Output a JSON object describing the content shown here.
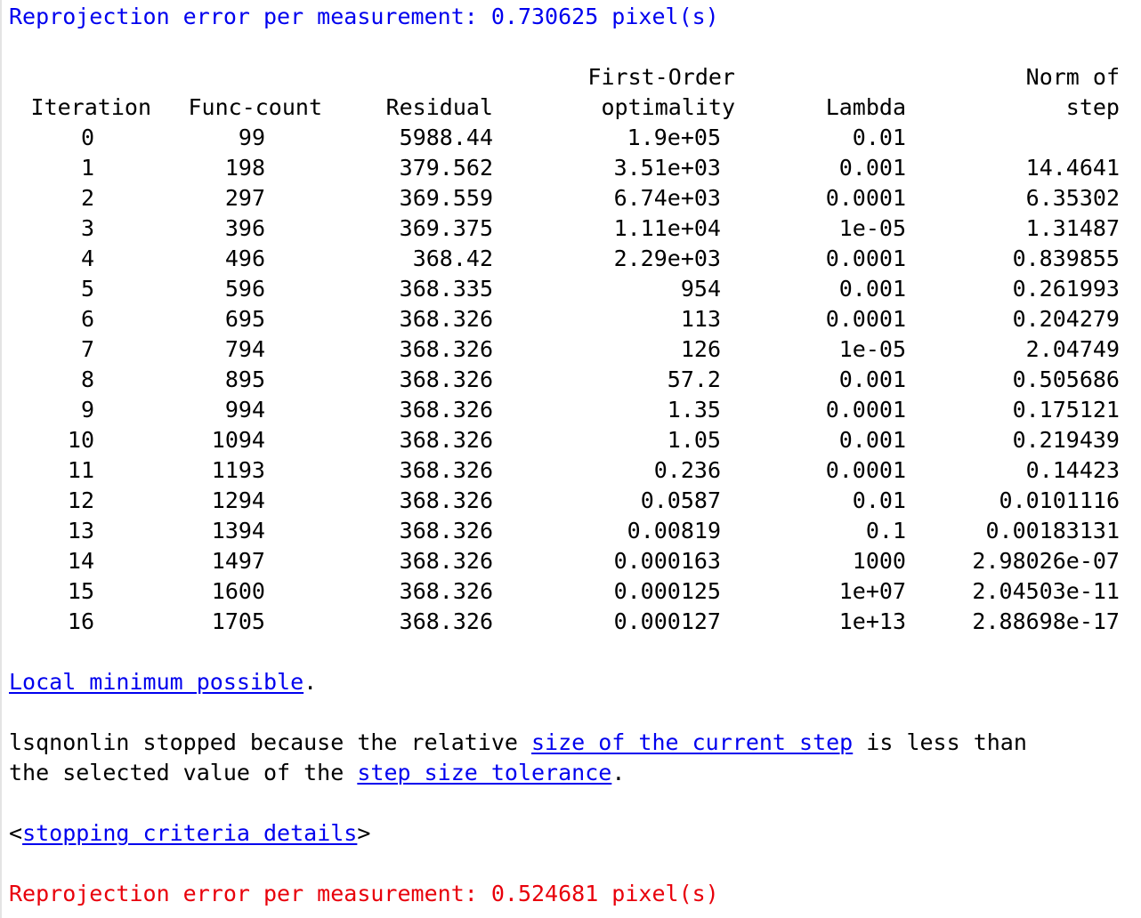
{
  "header_line": {
    "text": "Reprojection error per measurement: 0.730625 pixel(s)",
    "color": "#0000ee"
  },
  "table": {
    "header_top": {
      "col3": "First-Order",
      "col5": "Norm of"
    },
    "header_bottom": {
      "col0": "Iteration",
      "col1": "Func-count",
      "col2": "Residual",
      "col3": "optimality",
      "col4": "Lambda",
      "col5": "step"
    },
    "rows": [
      [
        "0",
        "99",
        "5988.44",
        "1.9e+05",
        "0.01",
        ""
      ],
      [
        "1",
        "198",
        "379.562",
        "3.51e+03",
        "0.001",
        "14.4641"
      ],
      [
        "2",
        "297",
        "369.559",
        "6.74e+03",
        "0.0001",
        "6.35302"
      ],
      [
        "3",
        "396",
        "369.375",
        "1.11e+04",
        "1e-05",
        "1.31487"
      ],
      [
        "4",
        "496",
        "368.42",
        "2.29e+03",
        "0.0001",
        "0.839855"
      ],
      [
        "5",
        "596",
        "368.335",
        "954",
        "0.001",
        "0.261993"
      ],
      [
        "6",
        "695",
        "368.326",
        "113",
        "0.0001",
        "0.204279"
      ],
      [
        "7",
        "794",
        "368.326",
        "126",
        "1e-05",
        "2.04749"
      ],
      [
        "8",
        "895",
        "368.326",
        "57.2",
        "0.001",
        "0.505686"
      ],
      [
        "9",
        "994",
        "368.326",
        "1.35",
        "0.0001",
        "0.175121"
      ],
      [
        "10",
        "1094",
        "368.326",
        "1.05",
        "0.001",
        "0.219439"
      ],
      [
        "11",
        "1193",
        "368.326",
        "0.236",
        "0.0001",
        "0.14423"
      ],
      [
        "12",
        "1294",
        "368.326",
        "0.0587",
        "0.01",
        "0.0101116"
      ],
      [
        "13",
        "1394",
        "368.326",
        "0.00819",
        "0.1",
        "0.00183131"
      ],
      [
        "14",
        "1497",
        "368.326",
        "0.000163",
        "1000",
        "2.98026e-07"
      ],
      [
        "15",
        "1600",
        "368.326",
        "0.000125",
        "1e+07",
        "2.04503e-11"
      ],
      [
        "16",
        "1705",
        "368.326",
        "0.000127",
        "1e+13",
        "2.88698e-17"
      ]
    ]
  },
  "result": {
    "link": "Local minimum possible",
    "suffix": "."
  },
  "message": {
    "line1_prefix": "lsqnonlin stopped because the relative ",
    "line1_link": "size of the current step",
    "line1_suffix": " is less than",
    "line2_prefix": "the selected value of the ",
    "line2_link": "step size tolerance",
    "line2_suffix": "."
  },
  "details": {
    "open": "<",
    "link": "stopping criteria details",
    "close": ">"
  },
  "footer_line": {
    "text": "Reprojection error per measurement: 0.524681 pixel(s)",
    "color": "#e8000b"
  }
}
